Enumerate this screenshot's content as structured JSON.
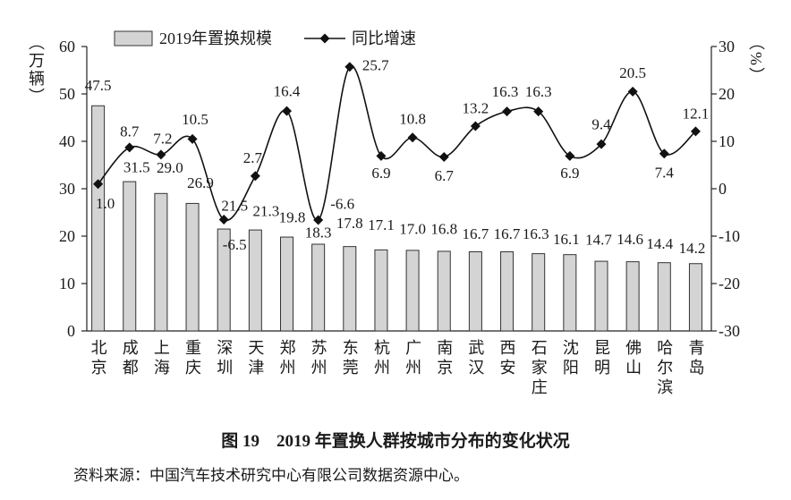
{
  "chart_data": {
    "type": "bar",
    "categories": [
      "北京",
      "成都",
      "上海",
      "重庆",
      "深圳",
      "天津",
      "郑州",
      "苏州",
      "东莞",
      "杭州",
      "广州",
      "南京",
      "武汉",
      "西安",
      "石家庄",
      "沈阳",
      "昆明",
      "佛山",
      "哈尔滨",
      "青岛"
    ],
    "series": [
      {
        "name": "2019年置换规模",
        "type": "bar",
        "axis": "left",
        "values": [
          47.5,
          31.5,
          29.0,
          26.9,
          21.5,
          21.3,
          19.8,
          18.3,
          17.8,
          17.1,
          17.0,
          16.8,
          16.7,
          16.7,
          16.3,
          16.1,
          14.7,
          14.6,
          14.4,
          14.2
        ],
        "data_labels": [
          "47.5",
          "31.5",
          "29.0",
          "26.9",
          "21.5",
          "21.3",
          "19.8",
          "18.3",
          "17.8",
          "17.1",
          "17.0",
          "16.8",
          "16.7",
          "16.7",
          "16.3",
          "16.1",
          "14.7",
          "14.6",
          "14.4",
          "14.2"
        ]
      },
      {
        "name": "同比增速",
        "type": "line",
        "axis": "right",
        "marker": "diamond",
        "smooth": true,
        "values": [
          1.0,
          8.7,
          7.2,
          10.5,
          -6.5,
          2.7,
          16.4,
          -6.6,
          25.7,
          6.9,
          10.8,
          6.7,
          13.2,
          16.3,
          16.3,
          6.9,
          9.4,
          20.5,
          7.4,
          12.1
        ],
        "data_labels": [
          "1.0",
          "8.7",
          "7.2",
          "10.5",
          "-6.5",
          "2.7",
          "16.4",
          "-6.6",
          "25.7",
          "6.9",
          "10.8",
          "6.7",
          "13.2",
          "16.3",
          "16.3",
          "6.9",
          "9.4",
          "20.5",
          "7.4",
          "12.1"
        ]
      }
    ],
    "y_left": {
      "label": "（万辆）",
      "range": [
        0,
        60
      ],
      "ticks": [
        0,
        10,
        20,
        30,
        40,
        50,
        60
      ]
    },
    "y_right": {
      "label": "（%）",
      "range": [
        -30,
        30
      ],
      "ticks": [
        -30,
        -20,
        -10,
        0,
        10,
        20,
        30
      ]
    },
    "xlabel": "",
    "legend": {
      "position": "top"
    },
    "grid": false
  },
  "caption": {
    "title": "图 19　2019 年置换人群按城市分布的变化状况",
    "source": "资料来源：中国汽车技术研究中心有限公司数据资源中心。"
  },
  "colors": {
    "bar_fill": "#d4d4d4",
    "bar_stroke": "#333333",
    "line": "#111111",
    "marker": "#111111",
    "axis": "#222222",
    "text": "#1a1a1a"
  }
}
